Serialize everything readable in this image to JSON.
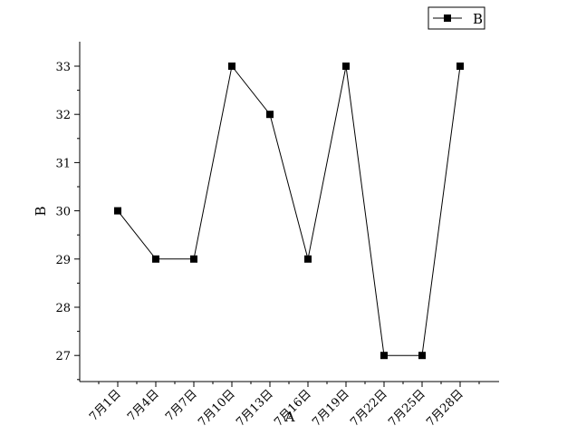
{
  "chart_data": {
    "type": "line",
    "xlabel": "A",
    "ylabel": "B",
    "categories": [
      "7月1日",
      "7月4日",
      "7月7日",
      "7月10日",
      "7月13日",
      "7月16日",
      "7月19日",
      "7月22日",
      "7月25日",
      "7月28日"
    ],
    "series": [
      {
        "name": "B",
        "values": [
          30,
          29,
          29,
          33,
          32,
          29,
          33,
          27,
          27,
          33
        ],
        "color": "#000000",
        "marker": "square"
      }
    ],
    "yticks": [
      27,
      28,
      29,
      30,
      31,
      32,
      33
    ],
    "ylim": [
      26.4,
      33.5
    ],
    "grid": false,
    "legend": "top-right"
  }
}
